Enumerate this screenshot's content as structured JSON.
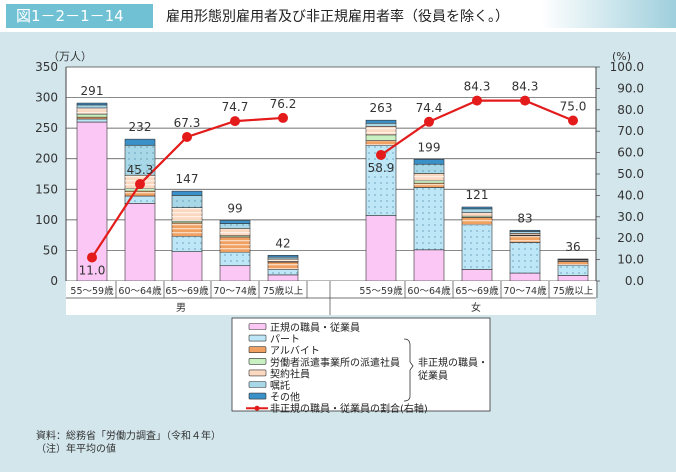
{
  "header": {
    "figure_number": "図1－2－1－14",
    "title": "雇用形態別雇用者及び非正規雇用者率（役員を除く。）"
  },
  "chart_data": {
    "type": "bar",
    "stacked": true,
    "ylabel_left": "（万人）",
    "ylabel_right": "(%)",
    "ylim_left": [
      0,
      350
    ],
    "yticks_left": [
      "0",
      "50",
      "100",
      "150",
      "200",
      "250",
      "300",
      "350"
    ],
    "ylim_right": [
      0,
      100
    ],
    "yticks_right": [
      "0.0",
      "10.0",
      "20.0",
      "30.0",
      "40.0",
      "50.0",
      "60.0",
      "70.0",
      "80.0",
      "90.0",
      "100.0"
    ],
    "groups": [
      {
        "label": "男",
        "categories": [
          "55～59歳",
          "60～64歳",
          "65～69歳",
          "70～74歳",
          "75歳以上"
        ]
      },
      {
        "label": "女",
        "categories": [
          "55～59歳",
          "60～64歳",
          "65～69歳",
          "70～74歳",
          "75歳以上"
        ]
      }
    ],
    "totals": [
      "291",
      "232",
      "147",
      "99",
      "42",
      "263",
      "199",
      "121",
      "83",
      "36"
    ],
    "series": [
      {
        "name": "正規の職員・従業員",
        "color": "#fbc8f5",
        "pattern": "none",
        "values": [
          260,
          127,
          48,
          25,
          10,
          107,
          51,
          19,
          13,
          9
        ]
      },
      {
        "name": "パート",
        "color": "#bde6f7",
        "pattern": "dots",
        "values": [
          5,
          12,
          25,
          22,
          9,
          115,
          102,
          73,
          50,
          17
        ]
      },
      {
        "name": "アルバイト",
        "color": "#f0a060",
        "pattern": "stripes",
        "values": [
          3,
          8,
          22,
          25,
          12,
          8,
          7,
          12,
          11,
          6
        ]
      },
      {
        "name": "労働者派遣事業所の派遣社員",
        "color": "#c8f0c0",
        "pattern": "none",
        "values": [
          5,
          4,
          3,
          2,
          1,
          9,
          4,
          2,
          1,
          0.5
        ]
      },
      {
        "name": "契約社員",
        "color": "#fbd8c0",
        "pattern": "stripes",
        "values": [
          10,
          22,
          22,
          12,
          4,
          14,
          12,
          6,
          3,
          1.5
        ]
      },
      {
        "name": "嘱託",
        "color": "#a8d8e8",
        "pattern": "dots",
        "values": [
          5,
          49,
          20,
          8,
          3,
          5,
          15,
          6,
          3,
          1
        ]
      },
      {
        "name": "その他",
        "color": "#3a90c8",
        "pattern": "none",
        "values": [
          3,
          10,
          7,
          5,
          3,
          5,
          8,
          3,
          2,
          1
        ]
      }
    ],
    "line": {
      "name": "非正規の職員・従業員の割合(右軸)",
      "color": "#e31b1b",
      "values": [
        11.0,
        45.3,
        67.3,
        74.7,
        76.2,
        58.9,
        74.4,
        84.3,
        84.3,
        75.0
      ],
      "labels": [
        "11.0",
        "45.3",
        "67.3",
        "74.7",
        "76.2",
        "58.9",
        "74.4",
        "84.3",
        "84.3",
        "75.0"
      ]
    },
    "legend": {
      "bracket_label_1": "非正規の職員・",
      "bracket_label_2": "従業員",
      "placement": "bottom-center"
    }
  },
  "notes": {
    "source": "資料：総務省「労働力調査」（令和４年）",
    "note": "（注）年平均の値"
  }
}
